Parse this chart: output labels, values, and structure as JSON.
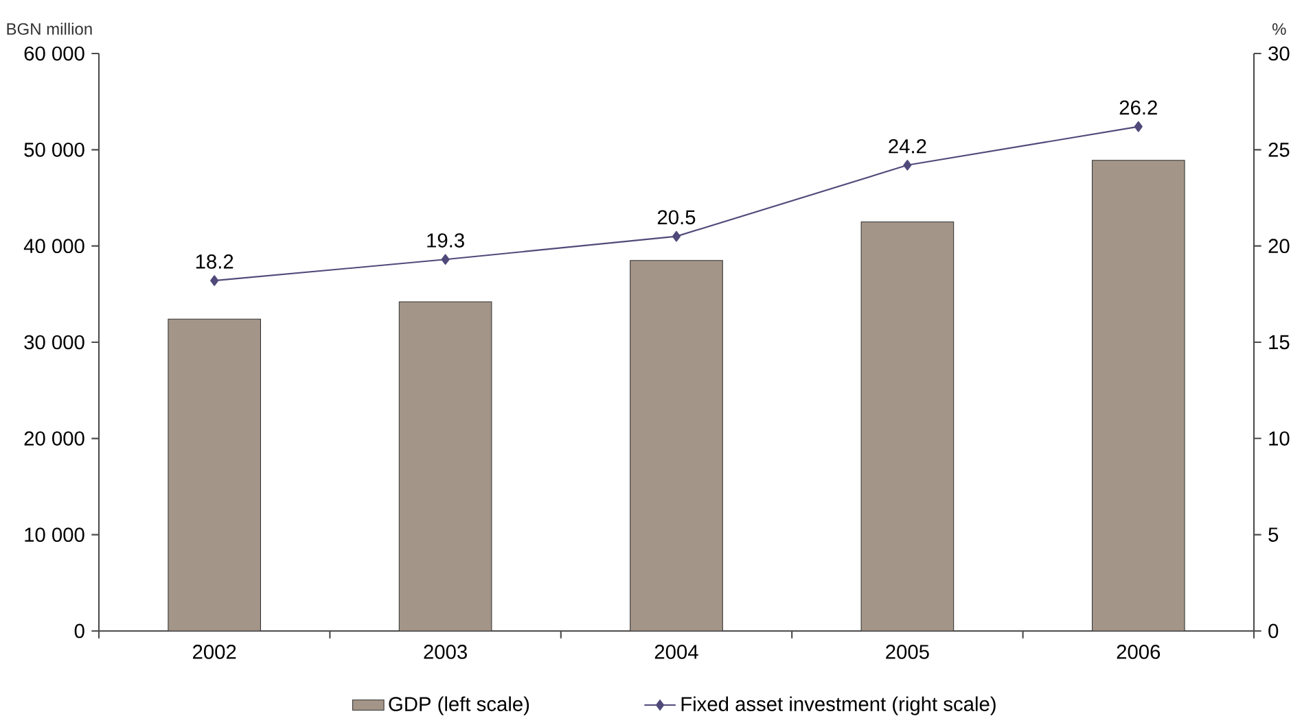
{
  "chart_data": {
    "type": "bar",
    "categories": [
      "2002",
      "2003",
      "2004",
      "2005",
      "2006"
    ],
    "series": [
      {
        "name": "GDP (left scale)",
        "color": "#a39588",
        "values": [
          32400,
          34200,
          38500,
          42500,
          48900
        ]
      },
      {
        "name": "Fixed asset investment (right scale)",
        "type": "line",
        "axis": "y2",
        "color": "#4f4a7a",
        "marker": "diamond",
        "values": [
          18.2,
          19.3,
          20.5,
          24.2,
          26.2
        ],
        "value_labels": [
          "18.2",
          "19.3",
          "20.5",
          "24.2",
          "26.2"
        ]
      }
    ],
    "ylabel": "BGN million",
    "y2label": "%",
    "ylim": [
      0,
      60000
    ],
    "yticks": [
      {
        "value": 0,
        "label": "0"
      },
      {
        "value": 10000,
        "label": "10 000"
      },
      {
        "value": 20000,
        "label": "20 000"
      },
      {
        "value": 30000,
        "label": "30 000"
      },
      {
        "value": 40000,
        "label": "40 000"
      },
      {
        "value": 50000,
        "label": "50 000"
      },
      {
        "value": 60000,
        "label": "60 000"
      }
    ],
    "y2lim": [
      0,
      30
    ],
    "y2ticks": [
      0,
      5,
      10,
      15,
      20,
      25,
      30
    ],
    "legend": "bottom",
    "grid": false
  }
}
